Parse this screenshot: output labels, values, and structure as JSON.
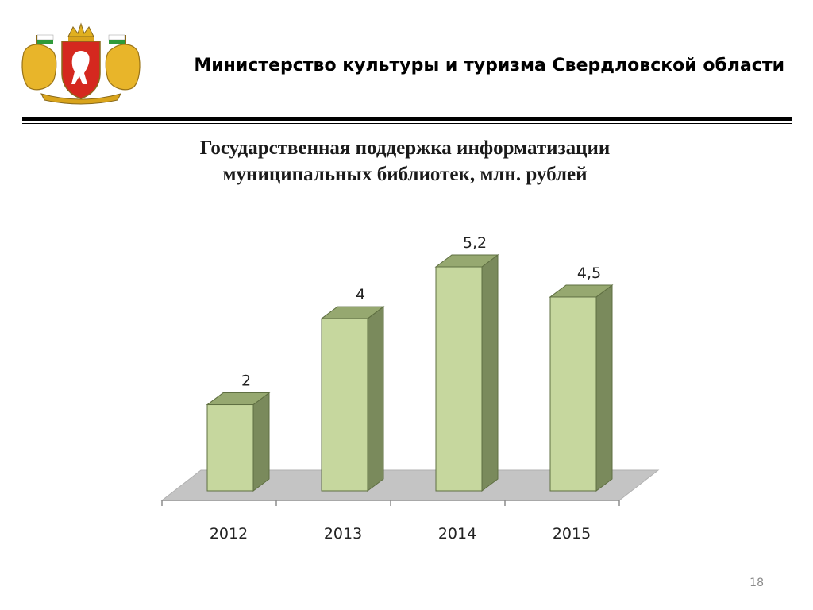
{
  "header": {
    "organization": "Министерство культуры  и туризма Свердловской области"
  },
  "slide": {
    "title_line1": "Государственная поддержка информатизации",
    "title_line2": "муниципальных библиотек, млн. рублей",
    "page_number": "18"
  },
  "colors": {
    "bar_front": "#c6d79e",
    "bar_side": "#7a8a5c",
    "bar_top": "#96a870",
    "bar_stroke": "#5f6f42",
    "floor": "#c4c4c4",
    "axis": "#8c8c8c"
  },
  "chart_data": {
    "type": "bar",
    "categories": [
      "2012",
      "2013",
      "2014",
      "2015"
    ],
    "values": [
      2,
      4,
      5.2,
      4.5
    ],
    "data_labels": [
      "2",
      "4",
      "5,2",
      "4,5"
    ],
    "title": "",
    "xlabel": "",
    "ylabel": "",
    "ylim": [
      0,
      5.2
    ],
    "style": "3d-column",
    "grid": false,
    "legend": "none"
  }
}
